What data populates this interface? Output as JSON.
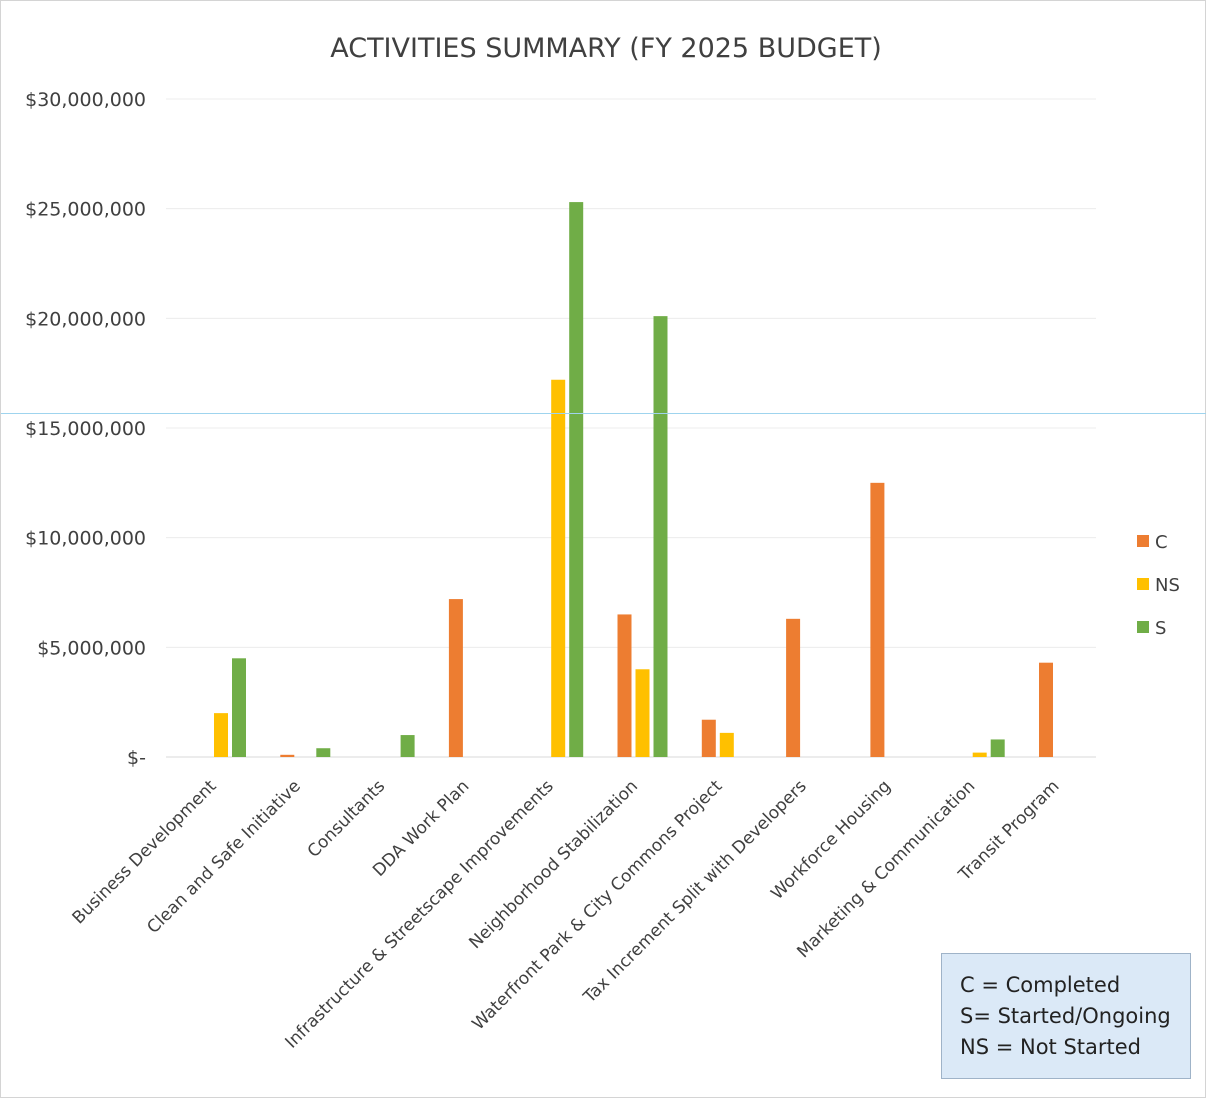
{
  "chart_data": {
    "type": "bar",
    "title": "ACTIVITIES SUMMARY (FY 2025 BUDGET)",
    "xlabel": "",
    "ylabel": "",
    "ylim": [
      0,
      30000000
    ],
    "yticks": [
      0,
      5000000,
      10000000,
      15000000,
      20000000,
      25000000,
      30000000
    ],
    "ytick_labels": [
      "$-",
      "$5,000,000",
      "$10,000,000",
      "$15,000,000",
      "$20,000,000",
      "$25,000,000",
      "$30,000,000"
    ],
    "grid": true,
    "legend_position": "right",
    "categories": [
      "Business Development",
      "Clean and Safe Initiative",
      "Consultants",
      "DDA Work Plan",
      "Infrastructure & Streetscape Improvements",
      "Neighborhood Stabilization",
      "Waterfront Park & City Commons Project",
      "Tax Increment Split with Developers",
      "Workforce Housing",
      "Marketing & Communication",
      "Transit Program"
    ],
    "series": [
      {
        "name": "C",
        "color": "#ed7d31",
        "values": [
          0,
          100000,
          0,
          7200000,
          0,
          6500000,
          1700000,
          6300000,
          12500000,
          0,
          4300000
        ]
      },
      {
        "name": "NS",
        "color": "#ffc000",
        "values": [
          2000000,
          0,
          0,
          0,
          17200000,
          4000000,
          1100000,
          0,
          0,
          200000,
          0
        ]
      },
      {
        "name": "S",
        "color": "#70ad47",
        "values": [
          4500000,
          400000,
          1000000,
          0,
          25300000,
          20100000,
          0,
          0,
          0,
          800000,
          0
        ]
      }
    ]
  },
  "note": {
    "lines": [
      "C = Completed",
      "S= Started/Ongoing",
      "NS = Not Started"
    ]
  }
}
